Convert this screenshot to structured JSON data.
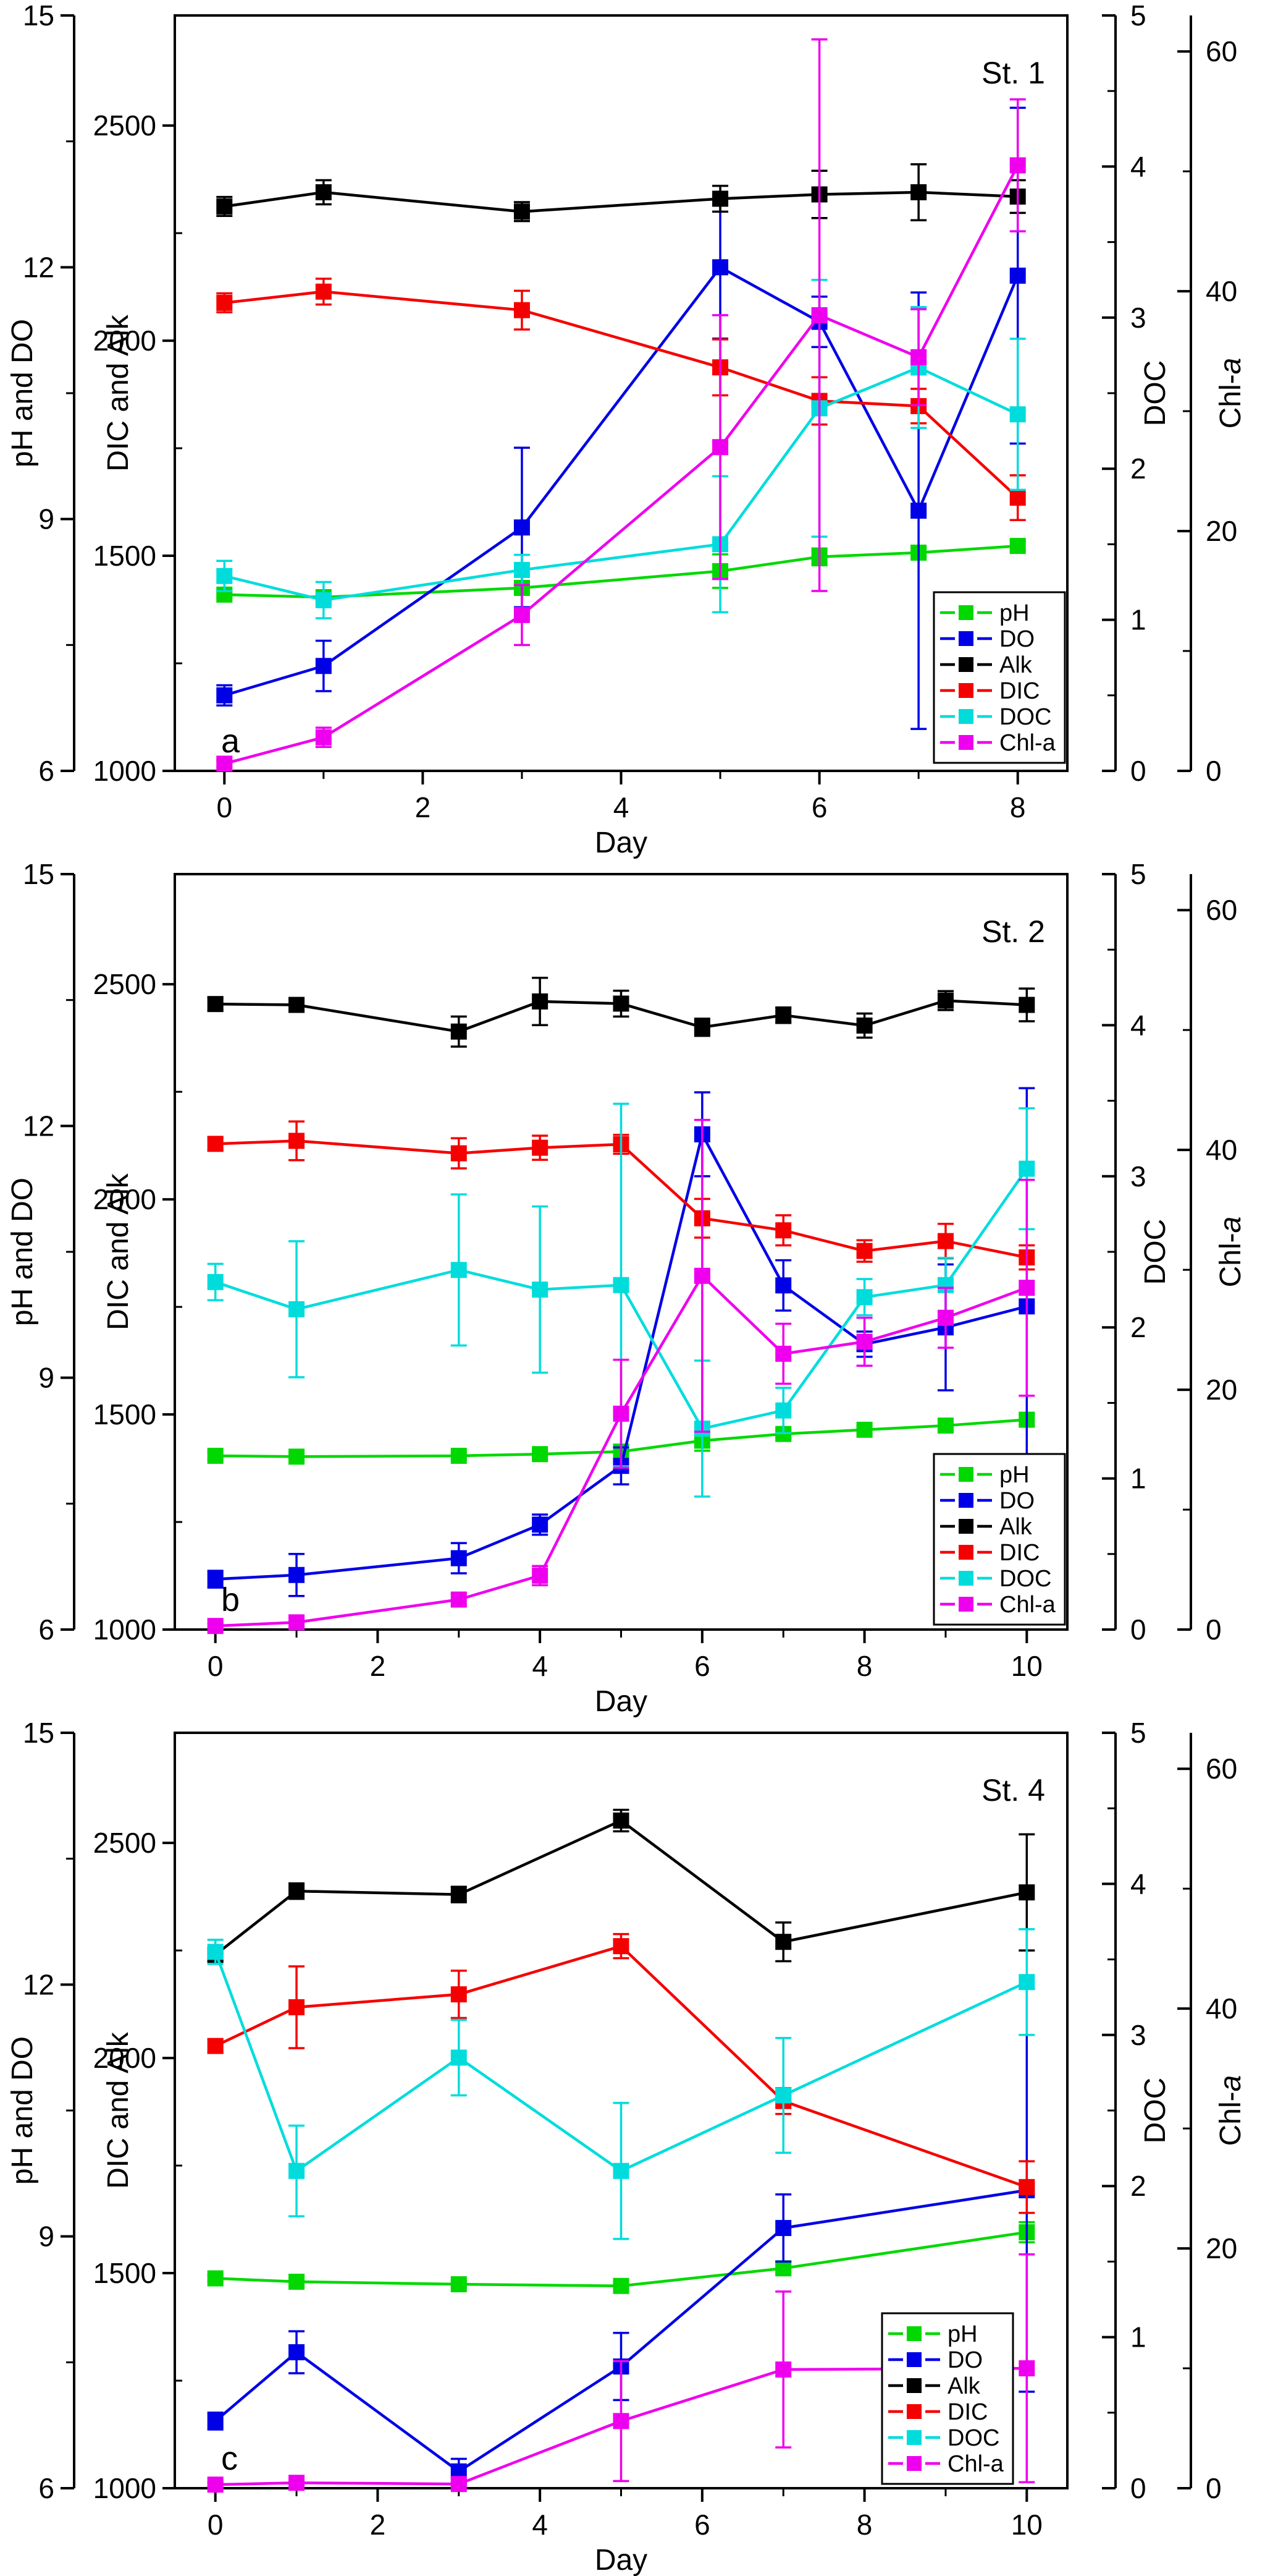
{
  "figure": {
    "background": "#ffffff",
    "x_axis_title": "Day",
    "left_outer_axis": {
      "title": "pH and DO",
      "range": [
        6,
        15
      ],
      "majors": [
        6,
        9,
        12,
        15
      ],
      "minors": [
        7.5,
        10.5,
        13.5
      ]
    },
    "left_inner_axis": {
      "title": "DIC and Alk",
      "range": [
        1000,
        2756
      ],
      "majors": [
        1000,
        1500,
        2000,
        2500
      ],
      "minors": [
        1250,
        1750,
        2250
      ]
    },
    "right_doc_axis": {
      "title": "DOC",
      "range": [
        0,
        5
      ],
      "majors": [
        0,
        1,
        2,
        3,
        4,
        5
      ],
      "minors": [
        0.5,
        1.5,
        2.5,
        3.5,
        4.5
      ]
    },
    "right_chl_axis": {
      "title_prefix": "Chl-",
      "title_italic": "a",
      "range": [
        0,
        63
      ],
      "majors": [
        0,
        20,
        40,
        60
      ],
      "minors": [
        10,
        30,
        50
      ]
    }
  },
  "series_meta": [
    {
      "key": "pH",
      "label": "pH",
      "color": "#00d800",
      "scale": "ph"
    },
    {
      "key": "DO",
      "label": "DO",
      "color": "#0000e6",
      "scale": "ph"
    },
    {
      "key": "Alk",
      "label": "Alk",
      "color": "#000000",
      "scale": "dic"
    },
    {
      "key": "DIC",
      "label": "DIC",
      "color": "#f50000",
      "scale": "dic"
    },
    {
      "key": "DOC",
      "label": "DOC",
      "color": "#00dcdc",
      "scale": "doc"
    },
    {
      "key": "Chl-a",
      "label": "Chl-a",
      "color": "#ee00ee",
      "scale": "chl"
    }
  ],
  "chart_data": [
    {
      "type": "line",
      "station": "St. 1",
      "letter": "a",
      "xlabel": "Day",
      "xlim": [
        -0.5,
        8.5
      ],
      "xticks": [
        0,
        2,
        4,
        6,
        8
      ],
      "xminors": [
        1,
        3,
        5,
        7
      ],
      "days": [
        0,
        1,
        3,
        5,
        6,
        7,
        8
      ],
      "series": {
        "pH": {
          "values": [
            8.1,
            8.07,
            8.18,
            8.38,
            8.55,
            8.6,
            8.68
          ],
          "errors": [
            0.04,
            0.04,
            0.05,
            0.2,
            0.1,
            0.06,
            0.06
          ]
        },
        "DO": {
          "values": [
            6.9,
            7.25,
            8.9,
            12.0,
            11.35,
            9.1,
            11.9
          ],
          "errors": [
            0.12,
            0.3,
            0.95,
            0.85,
            0.3,
            2.6,
            2.0
          ]
        },
        "Alk": {
          "values": [
            2312,
            2345,
            2300,
            2330,
            2340,
            2345,
            2335
          ],
          "errors": [
            22,
            28,
            22,
            30,
            55,
            65,
            38
          ]
        },
        "DIC": {
          "values": [
            2088,
            2114,
            2071,
            1938,
            1860,
            1848,
            1635
          ],
          "errors": [
            22,
            30,
            45,
            65,
            55,
            40,
            52
          ]
        },
        "DOC": {
          "values": [
            1.29,
            1.13,
            1.33,
            1.5,
            2.4,
            2.67,
            2.36
          ],
          "errors": [
            0.1,
            0.12,
            0.1,
            0.45,
            0.85,
            0.4,
            0.5
          ]
        },
        "Chl-a": {
          "values": [
            0.6,
            2.8,
            13,
            27,
            38,
            34.5,
            50.5
          ],
          "errors": [
            0.3,
            0.8,
            2.5,
            11,
            23,
            4,
            5.5
          ]
        }
      }
    },
    {
      "type": "line",
      "station": "St. 2",
      "letter": "b",
      "xlabel": "Day",
      "xlim": [
        -0.5,
        10.5
      ],
      "xticks": [
        0,
        2,
        4,
        6,
        8,
        10
      ],
      "xminors": [
        1,
        3,
        5,
        7,
        9
      ],
      "days": [
        0,
        1,
        3,
        4,
        5,
        6,
        7,
        8,
        9,
        10
      ],
      "series": {
        "pH": {
          "values": [
            8.07,
            8.06,
            8.07,
            8.09,
            8.12,
            8.25,
            8.33,
            8.38,
            8.43,
            8.5
          ],
          "errors": [
            0.04,
            0.04,
            0.04,
            0.04,
            0.05,
            0.12,
            0.05,
            0.04,
            0.05,
            0.06
          ]
        },
        "DO": {
          "values": [
            6.6,
            6.65,
            6.85,
            7.25,
            7.95,
            11.9,
            10.1,
            9.4,
            9.6,
            9.85
          ],
          "errors": [
            0.1,
            0.25,
            0.18,
            0.12,
            0.22,
            0.5,
            0.3,
            0.15,
            0.75,
            2.6
          ]
        },
        "Alk": {
          "values": [
            2454,
            2452,
            2390,
            2460,
            2455,
            2400,
            2428,
            2404,
            2462,
            2452
          ],
          "errors": [
            15,
            15,
            35,
            55,
            30,
            20,
            18,
            28,
            22,
            38
          ]
        },
        "DIC": {
          "values": [
            2129,
            2136,
            2107,
            2120,
            2128,
            1956,
            1928,
            1880,
            1903,
            1865
          ],
          "errors": [
            15,
            45,
            35,
            28,
            22,
            45,
            35,
            25,
            40,
            28
          ]
        },
        "DOC": {
          "values": [
            2.3,
            2.12,
            2.38,
            2.25,
            2.28,
            1.33,
            1.45,
            2.2,
            2.28,
            3.05
          ],
          "errors": [
            0.12,
            0.45,
            0.5,
            0.55,
            1.2,
            0.45,
            0.15,
            0.12,
            0.18,
            0.4
          ]
        },
        "Chl-a": {
          "values": [
            0.3,
            0.6,
            2.5,
            4.5,
            18.0,
            29.5,
            23.0,
            24.0,
            26.0,
            28.5
          ],
          "errors": [
            0.2,
            0.3,
            0.5,
            0.8,
            4.5,
            13.0,
            2.5,
            2.0,
            2.5,
            9.0
          ]
        }
      }
    },
    {
      "type": "line",
      "station": "St. 4",
      "letter": "c",
      "xlabel": "Day",
      "xlim": [
        -0.5,
        10.5
      ],
      "xticks": [
        0,
        2,
        4,
        6,
        8,
        10
      ],
      "xminors": [
        1,
        3,
        5,
        7,
        9
      ],
      "days": [
        0,
        1,
        3,
        5,
        7,
        10
      ],
      "series": {
        "pH": {
          "values": [
            8.5,
            8.46,
            8.43,
            8.41,
            8.62,
            9.05
          ],
          "errors": [
            0.04,
            0.04,
            0.04,
            0.05,
            0.05,
            0.12
          ]
        },
        "DO": {
          "values": [
            6.8,
            7.62,
            6.2,
            7.45,
            9.1,
            9.55
          ],
          "errors": [
            0.1,
            0.25,
            0.15,
            0.4,
            0.4,
            2.4
          ]
        },
        "Alk": {
          "values": [
            2240,
            2388,
            2380,
            2552,
            2270,
            2385
          ],
          "errors": [
            15,
            18,
            18,
            25,
            45,
            135
          ]
        },
        "DIC": {
          "values": [
            2028,
            2118,
            2148,
            2260,
            1900,
            1700
          ],
          "errors": [
            15,
            95,
            55,
            28,
            30,
            60
          ]
        },
        "DOC": {
          "values": [
            3.55,
            2.1,
            2.85,
            2.1,
            2.6,
            3.35
          ],
          "errors": [
            0.08,
            0.3,
            0.25,
            0.45,
            0.38,
            0.35
          ]
        },
        "Chl-a": {
          "values": [
            0.3,
            0.45,
            0.35,
            5.6,
            9.9,
            10.0
          ],
          "errors": [
            0.15,
            0.2,
            0.15,
            5.0,
            6.5,
            9.5
          ]
        }
      }
    }
  ],
  "legend": {
    "entries": [
      "pH",
      "DO",
      "Alk",
      "DIC",
      "DOC",
      "Chl-a"
    ]
  }
}
